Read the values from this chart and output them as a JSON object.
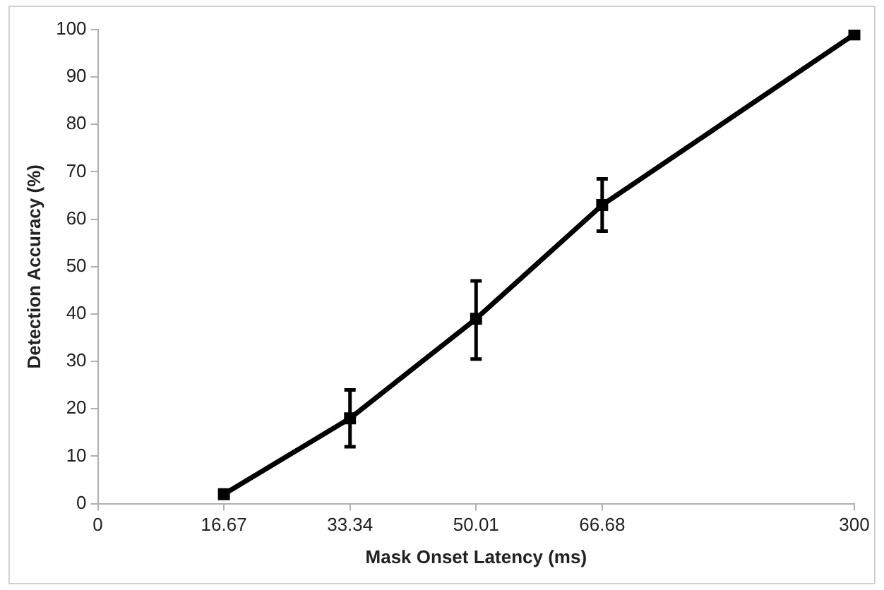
{
  "chart_data": {
    "type": "line",
    "xlabel": "Mask Onset Latency (ms)",
    "ylabel": "Detection Accuracy (%)",
    "categories": [
      "0",
      "16.67",
      "33.34",
      "50.01",
      "66.68",
      null,
      "300"
    ],
    "series": [
      {
        "color": "#000000",
        "values": [
          null,
          2,
          18,
          39,
          63,
          null,
          99
        ],
        "errors": [
          null,
          null,
          [
            12,
            24
          ],
          [
            30.5,
            47
          ],
          [
            57.5,
            68.5
          ],
          null,
          null
        ]
      }
    ],
    "ylim": [
      0,
      100
    ],
    "yticks": [
      0,
      10,
      20,
      30,
      40,
      50,
      60,
      70,
      80,
      90,
      100
    ],
    "grid": false,
    "legend": false,
    "marker": "square",
    "line_style": "solid"
  }
}
